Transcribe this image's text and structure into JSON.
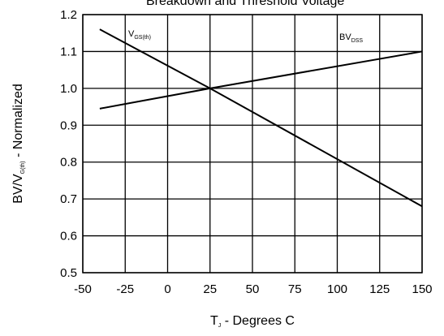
{
  "chart_data": {
    "type": "line",
    "title": "Breakdown and Threshold Voltage",
    "xlabel": {
      "main": "T",
      "sub": "J",
      "rest": " - Degrees C"
    },
    "ylabel": {
      "pre": "BV/V",
      "sub": "G(th)",
      "rest": " - Normalized"
    },
    "xlim": [
      -50,
      150
    ],
    "ylim": [
      0.5,
      1.2
    ],
    "xticks": [
      -50,
      -25,
      0,
      25,
      50,
      75,
      100,
      125,
      150
    ],
    "yticks": [
      0.5,
      0.6,
      0.7,
      0.8,
      0.9,
      1.0,
      1.1,
      1.2
    ],
    "xtick_labels": [
      "-50",
      "-25",
      "0",
      "25",
      "50",
      "75",
      "100",
      "125",
      "150"
    ],
    "ytick_labels": [
      "0.5",
      "0.6",
      "0.7",
      "0.8",
      "0.9",
      "1.0",
      "1.1",
      "1.2"
    ],
    "grid": true,
    "series": [
      {
        "name": "V_GS(th)",
        "label_main": "V",
        "label_sub": "GS(th)",
        "x": [
          -40,
          25,
          150
        ],
        "y": [
          1.16,
          1.0,
          0.68
        ]
      },
      {
        "name": "BV_DSS",
        "label_main": "BV",
        "label_sub": "DSS",
        "x": [
          -40,
          25,
          150
        ],
        "y": [
          0.945,
          1.0,
          1.1
        ]
      }
    ]
  }
}
